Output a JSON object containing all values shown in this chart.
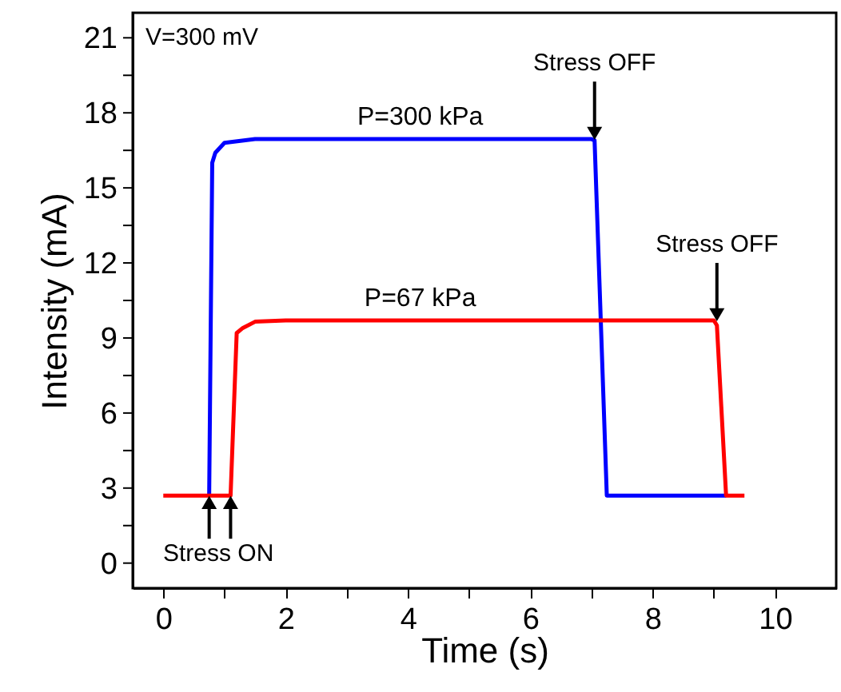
{
  "chart_data": {
    "type": "line",
    "xlabel": "Time (s)",
    "ylabel": "Intensity (mA)",
    "xlim": [
      -0.5,
      11
    ],
    "ylim": [
      -1,
      22
    ],
    "xticks": [
      0,
      {
        "value": 1,
        "label": null
      },
      2,
      {
        "value": 3,
        "label": null
      },
      4,
      {
        "value": 5,
        "label": null
      },
      6,
      {
        "value": 7,
        "label": null
      },
      8,
      {
        "value": 9,
        "label": null
      },
      10
    ],
    "yticks": [
      0,
      {
        "value": 1.5,
        "label": null
      },
      3,
      {
        "value": 4.5,
        "label": null
      },
      6,
      {
        "value": 7.5,
        "label": null
      },
      9,
      {
        "value": 10.5,
        "label": null
      },
      12,
      {
        "value": 13.5,
        "label": null
      },
      15,
      {
        "value": 16.5,
        "label": null
      },
      18,
      {
        "value": 19.5,
        "label": null
      },
      21
    ],
    "grid": false,
    "marker": "none",
    "line_style": "solid",
    "series": [
      {
        "color": "#0000ff",
        "x": [
          0.75,
          0.8,
          0.85,
          1.0,
          1.5,
          7.0,
          7.05,
          7.25,
          9.2
        ],
        "values": [
          2.7,
          16.0,
          16.4,
          16.8,
          16.95,
          16.95,
          16.9,
          2.7,
          2.7
        ]
      },
      {
        "color": "#ff0000",
        "x": [
          0,
          1.1,
          1.2,
          1.3,
          1.5,
          2.0,
          9.0,
          9.05,
          9.2,
          9.5
        ],
        "values": [
          2.7,
          2.7,
          9.2,
          9.4,
          9.65,
          9.7,
          9.7,
          9.5,
          2.7,
          2.7
        ]
      }
    ],
    "annotations": [
      "V=300 mV",
      {
        "text": "P=300 kPa",
        "x": 4.2,
        "y": 16.95
      },
      {
        "text": "P=67 kPa",
        "x": 4.2,
        "y": 9.7
      },
      {
        "text": "Stress OFF",
        "x": 7.05,
        "y": 16.95
      },
      {
        "text": "Stress OFF",
        "x": 9.05,
        "y": 9.7
      },
      {
        "text": "Stress ON",
        "x": 0.9,
        "y": 2.7
      }
    ]
  }
}
